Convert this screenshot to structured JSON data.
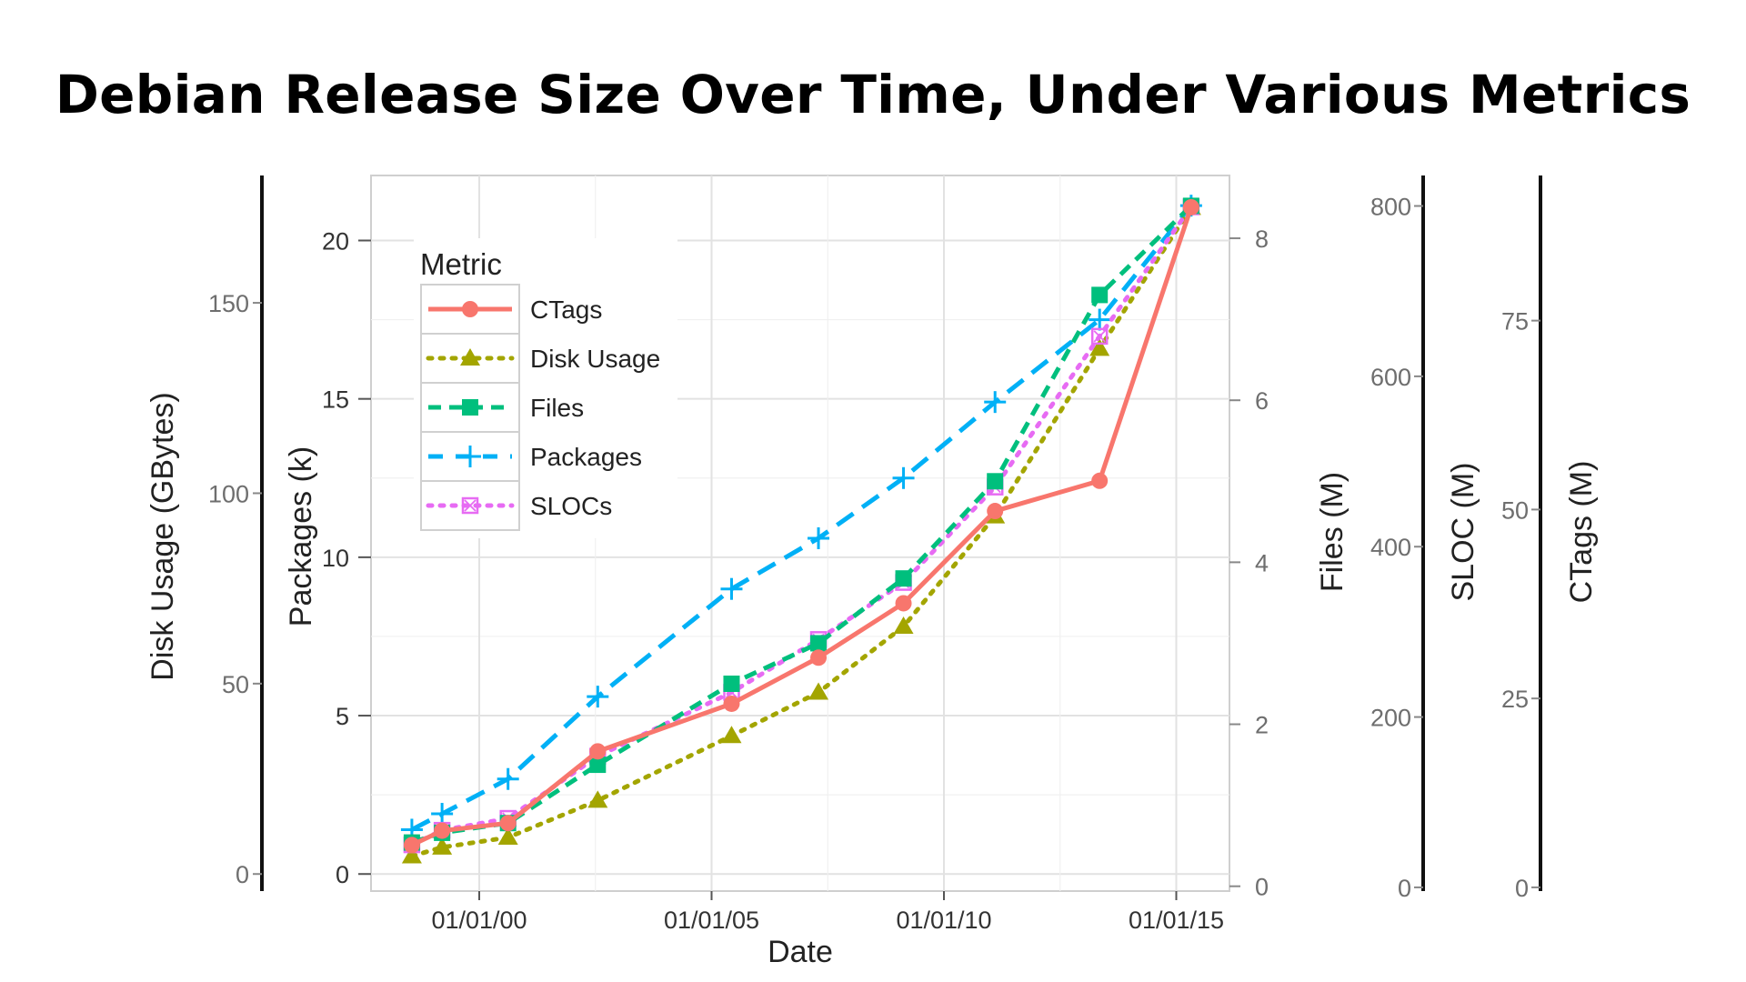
{
  "title": "Debian Release Size Over Time, Under Various Metrics",
  "chart_data": {
    "type": "line",
    "title": "Debian Release Size Over Time, Under Various Metrics",
    "xlabel": "Date",
    "x_tick_labels": [
      "01/01/00",
      "01/01/05",
      "01/01/10",
      "01/01/15"
    ],
    "x_tick_years": [
      2000,
      2005,
      2010,
      2015
    ],
    "x": [
      1998.55,
      1999.2,
      2000.62,
      2002.55,
      2005.43,
      2007.3,
      2009.13,
      2011.1,
      2013.35,
      2015.32
    ],
    "axes": {
      "disk": {
        "label": "Disk Usage (GBytes)",
        "ticks": [
          0,
          50,
          100,
          150
        ],
        "range": [
          0,
          180
        ]
      },
      "packages": {
        "label": "Packages (k)",
        "ticks": [
          0,
          5,
          10,
          15,
          20
        ],
        "range": [
          0,
          22
        ]
      },
      "files": {
        "label": "Files (M)",
        "ticks": [
          0,
          2,
          4,
          6,
          8
        ],
        "range": [
          0,
          8.6
        ]
      },
      "sloc": {
        "label": "SLOC (M)",
        "ticks": [
          0,
          200,
          400,
          600,
          800
        ],
        "range": [
          0,
          820
        ]
      },
      "ctags": {
        "label": "CTags (M)",
        "ticks": [
          0,
          25,
          50,
          75
        ],
        "range": [
          0,
          92
        ]
      }
    },
    "legend": {
      "title": "Metric",
      "position": "top-left inside plot"
    },
    "grid": true,
    "series": [
      {
        "name": "CTags",
        "axis": "ctags",
        "color": "#F8766D",
        "line": "solid",
        "marker": "circle",
        "values": [
          5.6,
          7.5,
          8.5,
          18.0,
          24.3,
          30.4,
          37.6,
          49.8,
          53.8,
          90.0
        ]
      },
      {
        "name": "Disk Usage",
        "axis": "disk",
        "color": "#A3A500",
        "line": "dotted",
        "marker": "triangle",
        "values": [
          4.7,
          7.0,
          9.6,
          19.3,
          36.3,
          47.7,
          65.0,
          94.0,
          138.0,
          175.0
        ]
      },
      {
        "name": "Files",
        "axis": "files",
        "color": "#00BF7D",
        "line": "dashed",
        "marker": "square",
        "values": [
          0.54,
          0.66,
          0.78,
          1.5,
          2.5,
          3.0,
          3.8,
          5.0,
          7.3,
          8.4
        ]
      },
      {
        "name": "Packages",
        "axis": "packages",
        "color": "#00B0F6",
        "line": "longdash",
        "marker": "plus",
        "values": [
          1.4,
          1.9,
          3.0,
          5.6,
          9.0,
          10.6,
          12.5,
          14.9,
          17.5,
          21.1
        ]
      },
      {
        "name": "SLOCs",
        "axis": "sloc",
        "color": "#E76BF3",
        "line": "dotted",
        "marker": "boxed-x",
        "values": [
          50,
          67,
          81,
          154,
          229,
          291,
          358,
          470,
          647,
          799
        ]
      }
    ]
  }
}
